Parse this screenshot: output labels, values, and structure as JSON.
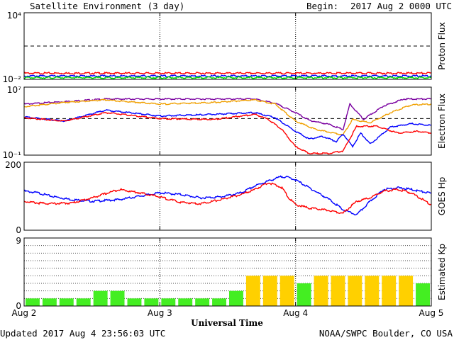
{
  "header": {
    "title": "Satellite Environment (3 day)",
    "begin_label": "Begin:",
    "begin_value": "2017 Aug 2 0000 UTC"
  },
  "footer": {
    "updated": "Updated 2017 Aug  4 23:56:03 UTC",
    "credit": "NOAA/SWPC Boulder, CO USA"
  },
  "colors": {
    "red": "#ff0000",
    "blue": "#0000ff",
    "green": "#00dd00",
    "purple": "#7a00a0",
    "orange": "#f0a000",
    "kp_green": "#44ee22",
    "kp_yellow": "#ffd000",
    "dashed": "#000000"
  },
  "chart_data": {
    "type": "multi-panel time series",
    "xlabel": "Universal Time",
    "xlim": [
      0,
      3
    ],
    "x_ticks": [
      "Aug 2",
      "Aug 3",
      "Aug 4",
      "Aug 5"
    ],
    "panels": [
      {
        "ylabel": "Proton Flux",
        "scale": "log",
        "ylim_exp": [
          -2,
          4
        ],
        "y_ticks": [
          "10⁴",
          "10⁻²"
        ],
        "threshold_exp": 1,
        "series": [
          {
            "color": "red",
            "x": [
              0,
              0.5,
              1,
              1.5,
              2,
              2.5,
              3
            ],
            "y_exp": [
              -1.45,
              -1.45,
              -1.45,
              -1.45,
              -1.45,
              -1.45,
              -1.45
            ]
          },
          {
            "color": "blue",
            "x": [
              0,
              0.5,
              1,
              1.5,
              2,
              2.5,
              3
            ],
            "y_exp": [
              -1.7,
              -1.7,
              -1.7,
              -1.7,
              -1.7,
              -1.7,
              -1.7
            ]
          },
          {
            "color": "green",
            "x": [
              0,
              0.5,
              1,
              1.5,
              2,
              2.5,
              3
            ],
            "y_exp": [
              -1.85,
              -1.85,
              -1.85,
              -1.85,
              -1.85,
              -1.85,
              -1.85
            ]
          }
        ]
      },
      {
        "ylabel": "Electron Flux",
        "scale": "log",
        "ylim_exp": [
          -1,
          7
        ],
        "y_ticks": [
          "10⁷",
          "10⁻¹"
        ],
        "threshold_exp": 3.3,
        "series": [
          {
            "color": "purple",
            "x": [
              0,
              0.3,
              0.6,
              1.0,
              1.4,
              1.7,
              1.85,
              2.0,
              2.1,
              2.25,
              2.35,
              2.4,
              2.5,
              2.65,
              2.8,
              3.0
            ],
            "y_exp": [
              5.0,
              5.3,
              5.6,
              5.6,
              5.6,
              5.6,
              5.1,
              4.0,
              3.1,
              2.6,
              2.0,
              5.0,
              3.2,
              4.8,
              5.6,
              5.6
            ]
          },
          {
            "color": "orange",
            "x": [
              0,
              0.3,
              0.6,
              1.0,
              1.4,
              1.7,
              1.85,
              2.0,
              2.15,
              2.25,
              2.35,
              2.42,
              2.55,
              2.7,
              2.85,
              3.0
            ],
            "y_exp": [
              4.7,
              5.2,
              5.5,
              5.0,
              5.2,
              5.5,
              5.0,
              3.0,
              2.0,
              1.7,
              1.4,
              3.2,
              2.8,
              4.0,
              4.9,
              5.0
            ]
          },
          {
            "color": "blue",
            "x": [
              0,
              0.3,
              0.6,
              1.0,
              1.4,
              1.7,
              1.85,
              2.0,
              2.1,
              2.2,
              2.3,
              2.35,
              2.42,
              2.48,
              2.55,
              2.7,
              2.85,
              3.0
            ],
            "y_exp": [
              3.5,
              3.0,
              4.3,
              3.6,
              3.8,
              4.0,
              3.4,
              1.8,
              0.9,
              1.2,
              0.6,
              1.5,
              0.0,
              1.6,
              0.3,
              2.3,
              2.7,
              2.5
            ]
          },
          {
            "color": "red",
            "x": [
              0,
              0.3,
              0.6,
              1.0,
              1.4,
              1.7,
              1.8,
              1.9,
              2.0,
              2.1,
              2.25,
              2.35,
              2.45,
              2.6,
              2.75,
              2.9,
              3.0
            ],
            "y_exp": [
              3.4,
              3.0,
              4.0,
              3.3,
              3.2,
              3.8,
              3.2,
              2.0,
              0.0,
              -0.8,
              -0.8,
              -0.5,
              2.4,
              2.4,
              1.6,
              1.8,
              1.6
            ]
          }
        ]
      },
      {
        "ylabel": "GOES Hp",
        "scale": "linear",
        "ylim": [
          0,
          200
        ],
        "y_ticks": [
          "200",
          "0"
        ],
        "series": [
          {
            "color": "blue",
            "x": [
              0,
              0.1,
              0.2,
              0.35,
              0.5,
              0.7,
              0.85,
              1.0,
              1.15,
              1.3,
              1.45,
              1.6,
              1.7,
              1.8,
              1.9,
              1.95,
              2.0,
              2.1,
              2.25,
              2.35,
              2.45,
              2.55,
              2.65,
              2.75,
              2.85,
              3.0
            ],
            "y": [
              115,
              110,
              100,
              90,
              85,
              90,
              100,
              110,
              105,
              95,
              98,
              110,
              130,
              145,
              158,
              155,
              148,
              125,
              90,
              60,
              45,
              85,
              120,
              125,
              120,
              108
            ]
          },
          {
            "color": "red",
            "x": [
              0,
              0.1,
              0.2,
              0.35,
              0.5,
              0.7,
              0.85,
              1.0,
              1.15,
              1.3,
              1.45,
              1.6,
              1.7,
              1.8,
              1.9,
              1.95,
              2.0,
              2.1,
              2.25,
              2.35,
              2.45,
              2.55,
              2.65,
              2.75,
              2.85,
              3.0
            ],
            "y": [
              85,
              80,
              78,
              80,
              95,
              120,
              110,
              98,
              82,
              78,
              90,
              105,
              120,
              140,
              125,
              95,
              75,
              65,
              58,
              50,
              85,
              95,
              115,
              120,
              110,
              75
            ]
          }
        ]
      },
      {
        "ylabel": "Estimated Kp",
        "scale": "linear",
        "ylim": [
          0,
          9
        ],
        "y_ticks": [
          "9",
          "0"
        ],
        "type": "bar",
        "bar_width_days": 0.125,
        "kp_values": [
          1,
          1,
          1,
          1,
          2,
          2,
          1,
          1,
          1,
          1,
          1,
          1,
          2,
          4,
          4,
          4,
          3,
          4,
          4,
          4,
          4,
          4,
          4,
          3
        ]
      }
    ]
  }
}
